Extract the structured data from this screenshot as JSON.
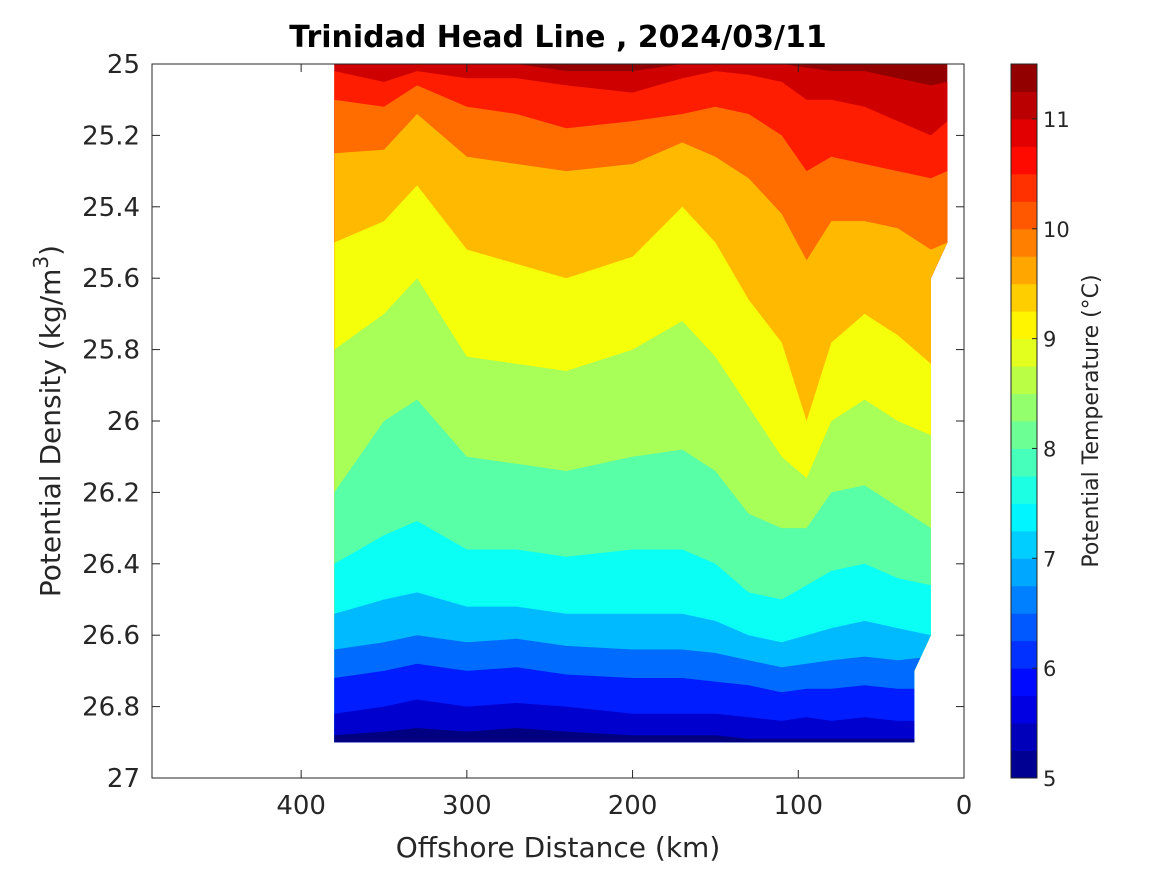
{
  "chart_data": {
    "type": "heatmap",
    "title": "Trinidad Head Line , 2024/03/11",
    "xlabel": "Offshore Distance (km)",
    "ylabel": "Potential Density (kg/m3)",
    "x_reversed": true,
    "xlim": [
      490,
      0
    ],
    "ylim": [
      27,
      25
    ],
    "y_reversed": true,
    "xticks": [
      400,
      300,
      200,
      100,
      0
    ],
    "yticks": [
      25,
      25.2,
      25.4,
      25.6,
      25.8,
      26,
      26.2,
      26.4,
      26.6,
      26.8,
      27
    ],
    "colorbar": {
      "label": "Potential Temperature (°C)",
      "range": [
        5,
        11.5
      ],
      "step": 0.25,
      "ticks": [
        5,
        6,
        7,
        8,
        9,
        10,
        11
      ],
      "colormap": "jet"
    },
    "section_extent": {
      "x_range": [
        10,
        380
      ],
      "y_range": [
        25,
        26.9
      ]
    },
    "contour_isotherms": [
      {
        "level": 11.25,
        "x": [
          380,
          350,
          330,
          300,
          270,
          240,
          200,
          170,
          150,
          130,
          110,
          95,
          80,
          60,
          40,
          20,
          10
        ],
        "y": [
          25,
          25,
          25,
          25,
          25,
          25.02,
          25.02,
          25.0,
          25.0,
          25.0,
          25.0,
          25.01,
          25.02,
          25.02,
          25.04,
          25.06,
          25.05
        ]
      },
      {
        "level": 10.75,
        "x": [
          380,
          350,
          330,
          300,
          270,
          240,
          200,
          170,
          150,
          130,
          110,
          95,
          80,
          60,
          40,
          20,
          10
        ],
        "y": [
          25.02,
          25.05,
          25.02,
          25.04,
          25.04,
          25.06,
          25.08,
          25.04,
          25.02,
          25.03,
          25.05,
          25.1,
          25.1,
          25.12,
          25.16,
          25.2,
          25.16
        ]
      },
      {
        "level": 10.25,
        "x": [
          380,
          350,
          330,
          300,
          270,
          240,
          200,
          170,
          150,
          130,
          110,
          95,
          80,
          60,
          40,
          20,
          10
        ],
        "y": [
          25.1,
          25.12,
          25.06,
          25.12,
          25.14,
          25.18,
          25.16,
          25.14,
          25.12,
          25.14,
          25.2,
          25.3,
          25.26,
          25.28,
          25.3,
          25.32,
          25.3
        ]
      },
      {
        "level": 9.75,
        "x": [
          380,
          350,
          330,
          300,
          270,
          240,
          200,
          170,
          150,
          130,
          110,
          95,
          80,
          60,
          40,
          20,
          10
        ],
        "y": [
          25.25,
          25.24,
          25.14,
          25.26,
          25.28,
          25.3,
          25.28,
          25.22,
          25.26,
          25.32,
          25.42,
          25.55,
          25.44,
          25.44,
          25.46,
          25.52,
          25.5
        ]
      },
      {
        "level": 9.25,
        "x": [
          380,
          350,
          330,
          300,
          270,
          240,
          200,
          170,
          150,
          130,
          110,
          95,
          80,
          60,
          40,
          20
        ],
        "y": [
          25.5,
          25.44,
          25.34,
          25.52,
          25.56,
          25.6,
          25.54,
          25.4,
          25.5,
          25.66,
          25.78,
          26.0,
          25.78,
          25.7,
          25.76,
          25.84
        ]
      },
      {
        "level": 8.75,
        "x": [
          380,
          350,
          330,
          300,
          270,
          240,
          200,
          170,
          150,
          130,
          110,
          95,
          80,
          60,
          40,
          20
        ],
        "y": [
          25.8,
          25.7,
          25.6,
          25.82,
          25.84,
          25.86,
          25.8,
          25.72,
          25.82,
          25.96,
          26.1,
          26.16,
          26.0,
          25.94,
          26.0,
          26.04
        ]
      },
      {
        "level": 8.25,
        "x": [
          380,
          350,
          330,
          300,
          270,
          240,
          200,
          170,
          150,
          130,
          110,
          95,
          80,
          60,
          40,
          20
        ],
        "y": [
          26.2,
          26.0,
          25.94,
          26.1,
          26.12,
          26.14,
          26.1,
          26.08,
          26.14,
          26.26,
          26.3,
          26.3,
          26.2,
          26.18,
          26.24,
          26.3
        ]
      },
      {
        "level": 7.75,
        "x": [
          380,
          350,
          330,
          300,
          270,
          240,
          200,
          170,
          150,
          130,
          110,
          95,
          80,
          60,
          40,
          20
        ],
        "y": [
          26.4,
          26.32,
          26.28,
          26.36,
          26.36,
          26.38,
          26.36,
          26.36,
          26.4,
          26.48,
          26.5,
          26.46,
          26.42,
          26.4,
          26.44,
          26.46
        ]
      },
      {
        "level": 7.25,
        "x": [
          380,
          350,
          330,
          300,
          270,
          240,
          200,
          170,
          150,
          130,
          110,
          95,
          80,
          60,
          40,
          20
        ],
        "y": [
          26.54,
          26.5,
          26.48,
          26.52,
          26.52,
          26.54,
          26.54,
          26.54,
          26.56,
          26.6,
          26.62,
          26.6,
          26.58,
          26.56,
          26.58,
          26.6
        ]
      },
      {
        "level": 6.75,
        "x": [
          380,
          350,
          330,
          300,
          270,
          240,
          200,
          170,
          150,
          130,
          110,
          95,
          80,
          60,
          40,
          20
        ],
        "y": [
          26.64,
          26.62,
          26.6,
          26.62,
          26.61,
          26.63,
          26.64,
          26.64,
          26.65,
          26.67,
          26.69,
          26.68,
          26.67,
          26.66,
          26.67,
          26.66
        ]
      },
      {
        "level": 6.25,
        "x": [
          380,
          350,
          330,
          300,
          270,
          240,
          200,
          170,
          150,
          130,
          110,
          95,
          80,
          60,
          40,
          30
        ],
        "y": [
          26.72,
          26.7,
          26.68,
          26.7,
          26.69,
          26.71,
          26.72,
          26.72,
          26.73,
          26.74,
          26.76,
          26.75,
          26.75,
          26.74,
          26.75,
          26.75
        ]
      },
      {
        "level": 5.75,
        "x": [
          380,
          350,
          330,
          300,
          270,
          240,
          200,
          170,
          150,
          130,
          110,
          95,
          80,
          60,
          40,
          30
        ],
        "y": [
          26.82,
          26.8,
          26.78,
          26.8,
          26.79,
          26.8,
          26.82,
          26.82,
          26.82,
          26.83,
          26.84,
          26.83,
          26.84,
          26.83,
          26.84,
          26.84
        ]
      },
      {
        "level": 5.25,
        "x": [
          380,
          350,
          330,
          300,
          270,
          240,
          200,
          170,
          150,
          130,
          110,
          95,
          80,
          60,
          40,
          30
        ],
        "y": [
          26.88,
          26.87,
          26.86,
          26.87,
          26.86,
          26.87,
          26.88,
          26.88,
          26.88,
          26.89,
          26.89,
          26.89,
          26.89,
          26.89,
          26.89,
          26.89
        ]
      }
    ]
  }
}
